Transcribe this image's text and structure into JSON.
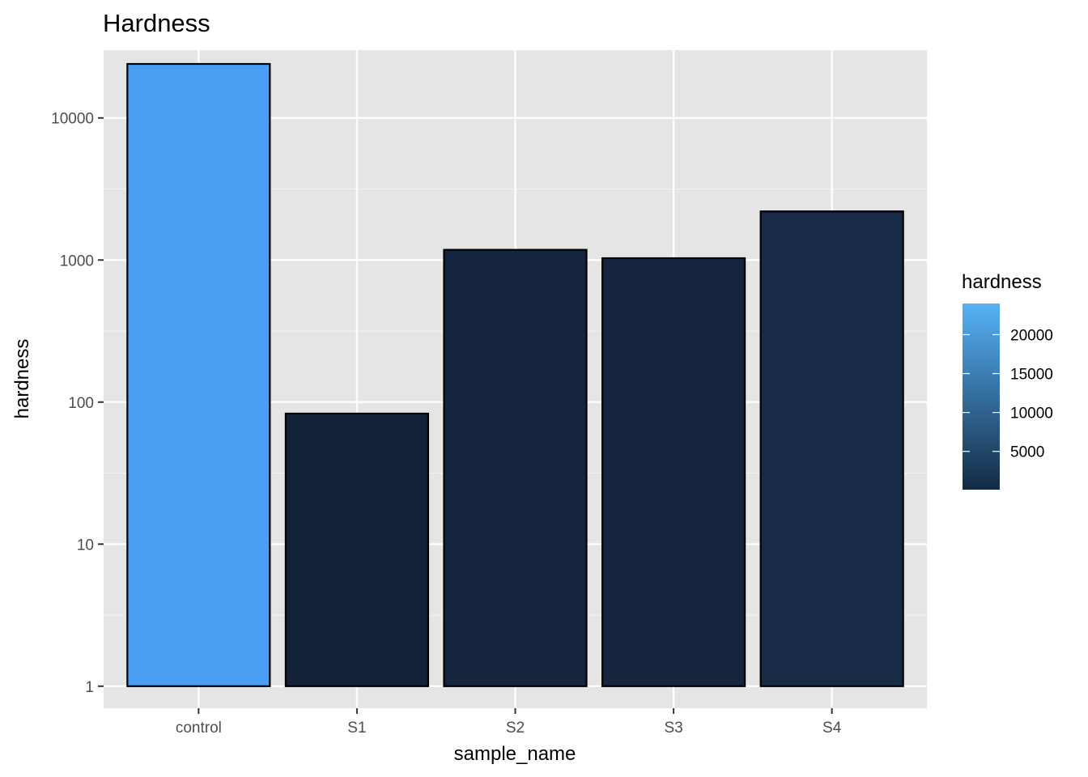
{
  "chart_data": {
    "type": "bar",
    "title": "Hardness",
    "xlabel": "sample_name",
    "ylabel": "hardness",
    "y_scale": "log10",
    "ylim": [
      0.7,
      30000
    ],
    "y_ticks": [
      1,
      10,
      100,
      1000,
      10000
    ],
    "y_tick_labels": [
      "1",
      "10",
      "100",
      "1000",
      "10000"
    ],
    "categories": [
      "control",
      "S1",
      "S2",
      "S3",
      "S4"
    ],
    "values": [
      24000,
      83,
      1180,
      1030,
      2200
    ],
    "bar_colors": [
      "#4a9ff5",
      "#132236",
      "#16253e",
      "#16253d",
      "#172a46"
    ],
    "bar_outline_color": "#000000",
    "panel_background": "#e5e5e5",
    "grid": true,
    "legend": {
      "title": "hardness",
      "position": "right",
      "type": "colorbar",
      "range": [
        83,
        24000
      ],
      "ticks": [
        5000,
        10000,
        15000,
        20000
      ],
      "tick_labels": [
        "5000",
        "10000",
        "15000",
        "20000"
      ],
      "color_low": "#132b43",
      "color_high": "#56b1f7"
    }
  }
}
